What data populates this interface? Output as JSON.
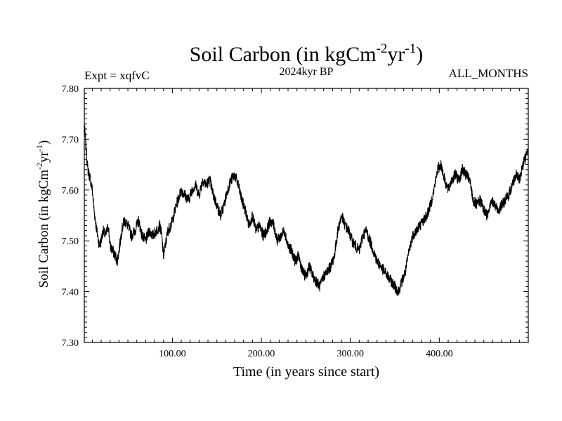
{
  "chart_data": {
    "type": "line",
    "title": "Soil Carbon (in kgCm",
    "title_sup1": "-2",
    "title_mid": "yr",
    "title_sup2": "-1",
    "title_end": ")",
    "subtitle": "2024kyr BP",
    "expt_label": "Expt = xqfvC",
    "months_label": "ALL_MONTHS",
    "xlabel": "Time (in years since start)",
    "ylabel_main": "Soil Carbon (in kgCm",
    "ylabel_sup1": "-2",
    "ylabel_mid": "yr",
    "ylabel_sup2": "-1",
    "ylabel_end": ")",
    "xlim": [
      1,
      500
    ],
    "ylim": [
      7.3,
      7.8
    ],
    "x_ticks": [
      100,
      200,
      300,
      400
    ],
    "x_tick_labels": [
      "100.00",
      "200.00",
      "300.00",
      "400.00"
    ],
    "y_ticks": [
      7.3,
      7.4,
      7.5,
      7.6,
      7.7,
      7.8
    ],
    "y_tick_labels": [
      "7.30",
      "7.40",
      "7.50",
      "7.60",
      "7.70",
      "7.80"
    ],
    "series": [
      {
        "name": "Soil Carbon",
        "color": "#000000",
        "x": [
          1,
          3,
          5,
          8,
          10,
          12,
          15,
          18,
          20,
          22,
          25,
          28,
          30,
          33,
          36,
          38,
          40,
          43,
          46,
          50,
          54,
          58,
          62,
          66,
          70,
          74,
          78,
          82,
          86,
          88,
          90,
          92,
          95,
          98,
          100,
          103,
          106,
          110,
          114,
          118,
          122,
          126,
          130,
          134,
          138,
          142,
          146,
          150,
          154,
          158,
          162,
          166,
          170,
          174,
          178,
          182,
          186,
          190,
          194,
          198,
          202,
          206,
          210,
          214,
          218,
          222,
          226,
          230,
          234,
          238,
          242,
          246,
          250,
          254,
          258,
          262,
          266,
          270,
          274,
          278,
          282,
          286,
          290,
          294,
          298,
          302,
          306,
          310,
          314,
          318,
          322,
          326,
          330,
          334,
          338,
          342,
          346,
          350,
          354,
          358,
          362,
          366,
          370,
          374,
          378,
          382,
          386,
          390,
          394,
          398,
          402,
          406,
          410,
          414,
          418,
          422,
          426,
          430,
          434,
          438,
          442,
          446,
          450,
          454,
          458,
          462,
          466,
          470,
          474,
          478,
          482,
          486,
          490,
          494,
          498,
          500
        ],
        "y": [
          7.73,
          7.68,
          7.64,
          7.62,
          7.6,
          7.56,
          7.52,
          7.49,
          7.5,
          7.52,
          7.51,
          7.53,
          7.49,
          7.48,
          7.47,
          7.46,
          7.48,
          7.52,
          7.54,
          7.53,
          7.51,
          7.52,
          7.54,
          7.51,
          7.5,
          7.52,
          7.51,
          7.52,
          7.53,
          7.51,
          7.47,
          7.49,
          7.52,
          7.53,
          7.54,
          7.56,
          7.58,
          7.6,
          7.59,
          7.58,
          7.6,
          7.61,
          7.59,
          7.62,
          7.61,
          7.62,
          7.59,
          7.57,
          7.55,
          7.57,
          7.6,
          7.62,
          7.63,
          7.61,
          7.58,
          7.56,
          7.53,
          7.55,
          7.52,
          7.53,
          7.51,
          7.52,
          7.54,
          7.53,
          7.5,
          7.51,
          7.52,
          7.49,
          7.48,
          7.46,
          7.47,
          7.44,
          7.43,
          7.45,
          7.43,
          7.42,
          7.41,
          7.43,
          7.44,
          7.45,
          7.47,
          7.52,
          7.55,
          7.53,
          7.52,
          7.5,
          7.49,
          7.48,
          7.51,
          7.52,
          7.5,
          7.48,
          7.46,
          7.45,
          7.44,
          7.43,
          7.42,
          7.41,
          7.4,
          7.42,
          7.44,
          7.48,
          7.51,
          7.52,
          7.53,
          7.54,
          7.55,
          7.57,
          7.6,
          7.64,
          7.65,
          7.62,
          7.6,
          7.62,
          7.63,
          7.62,
          7.64,
          7.63,
          7.62,
          7.58,
          7.57,
          7.58,
          7.56,
          7.55,
          7.58,
          7.57,
          7.56,
          7.57,
          7.58,
          7.59,
          7.61,
          7.63,
          7.62,
          7.65,
          7.67,
          7.69
        ]
      }
    ]
  }
}
